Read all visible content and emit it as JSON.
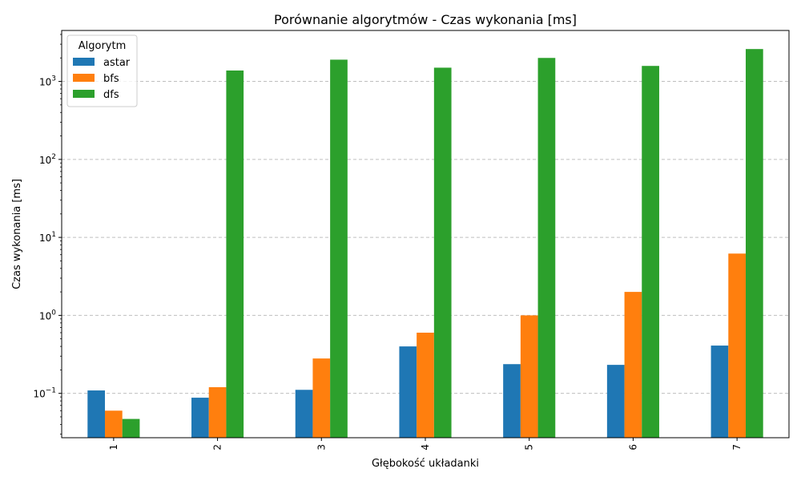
{
  "chart_data": {
    "type": "bar",
    "title": "Porównanie algorytmów - Czas wykonania [ms]",
    "xlabel": "Głębokość układanki",
    "ylabel": "Czas wykonania [ms]",
    "yscale": "log",
    "ylim": [
      0.027,
      4500
    ],
    "yticks": [
      {
        "value": 0.1,
        "base": "10",
        "exp": "−1"
      },
      {
        "value": 1,
        "base": "10",
        "exp": "0"
      },
      {
        "value": 10,
        "base": "10",
        "exp": "1"
      },
      {
        "value": 100,
        "base": "10",
        "exp": "2"
      },
      {
        "value": 1000,
        "base": "10",
        "exp": "3"
      }
    ],
    "grid": "y-dashed",
    "legend": {
      "title": "Algorytm",
      "placement": "top-left"
    },
    "categories": [
      "1",
      "2",
      "3",
      "4",
      "5",
      "6",
      "7"
    ],
    "series": [
      {
        "name": "astar",
        "color": "#1f77b4",
        "values": [
          0.109,
          0.088,
          0.111,
          0.4,
          0.237,
          0.232,
          0.41
        ]
      },
      {
        "name": "bfs",
        "color": "#ff7f0e",
        "values": [
          0.06,
          0.12,
          0.28,
          0.6,
          1.0,
          2.0,
          6.2
        ]
      },
      {
        "name": "dfs",
        "color": "#2ca02c",
        "values": [
          0.047,
          1380,
          1900,
          1500,
          2000,
          1580,
          2600
        ]
      }
    ]
  }
}
